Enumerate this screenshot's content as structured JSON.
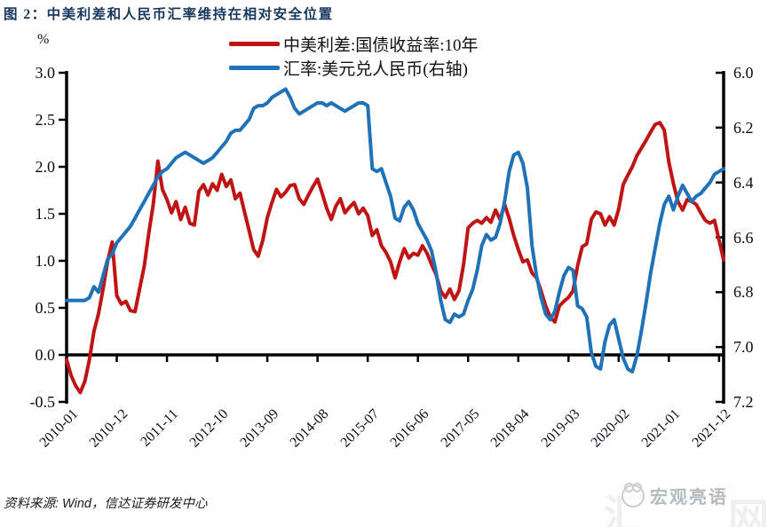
{
  "title": "图 2：中美利差和人民币汇率维持在相对安全位置",
  "axes": {
    "left_unit": "%",
    "left_tick_labels": [
      "3.0",
      "2.5",
      "2.0",
      "1.5",
      "1.0",
      "0.5",
      "0.0",
      "-0.5"
    ],
    "right_tick_labels": [
      "6.0",
      "6.2",
      "6.4",
      "6.6",
      "6.8",
      "7.0",
      "7.2"
    ],
    "x_tick_labels": [
      "2010-01",
      "2010-12",
      "2011-11",
      "2012-10",
      "2013-09",
      "2014-08",
      "2015-07",
      "2016-06",
      "2017-05",
      "2018-04",
      "2019-03",
      "2020-02",
      "2021-01",
      "2021-12"
    ]
  },
  "source": {
    "text": "资料来源: Wind，信达证券研发中心"
  },
  "watermark": {
    "text": "宏观亮语",
    "faint_glyphs": [
      "汇",
      "网"
    ]
  },
  "colors": {
    "title": "#17375e",
    "spread_line": "#c01414",
    "fx_line": "#1f72b8",
    "axis": "#000000"
  },
  "chart_data": {
    "type": "line",
    "title": "图 2：中美利差和人民币汇率维持在相对安全位置",
    "frequency": "monthly",
    "x_start": "2010-01",
    "x_end": "2022-01",
    "x_tick_labels": [
      "2010-01",
      "2010-12",
      "2011-11",
      "2012-10",
      "2013-09",
      "2014-08",
      "2015-07",
      "2016-06",
      "2017-05",
      "2018-04",
      "2019-03",
      "2020-02",
      "2021-01",
      "2021-12"
    ],
    "x_tick_interval_months": 11,
    "grid": false,
    "legend_position": "top-center",
    "left_axis": {
      "label": "%",
      "min": -0.5,
      "max": 3.0,
      "ticks": [
        3.0,
        2.5,
        2.0,
        1.5,
        1.0,
        0.5,
        0.0,
        -0.5
      ]
    },
    "right_axis": {
      "min": 6.0,
      "max": 7.2,
      "reversed_display": "6.0 at top, 7.2 at bottom",
      "ticks": [
        6.0,
        6.2,
        6.4,
        6.6,
        6.8,
        7.0,
        7.2
      ]
    },
    "series": [
      {
        "id": "spread-line",
        "name": "中美利差:国债收益率:10年",
        "axis": "left",
        "unit": "%",
        "color": "#c01414",
        "values": [
          -0.05,
          -0.22,
          -0.33,
          -0.4,
          -0.28,
          -0.05,
          0.25,
          0.44,
          0.7,
          1.0,
          1.2,
          0.63,
          0.54,
          0.57,
          0.47,
          0.46,
          0.7,
          0.94,
          1.29,
          1.6,
          2.06,
          1.76,
          1.65,
          1.51,
          1.63,
          1.44,
          1.57,
          1.4,
          1.38,
          1.74,
          1.81,
          1.7,
          1.82,
          1.75,
          1.92,
          1.79,
          1.86,
          1.66,
          1.72,
          1.52,
          1.32,
          1.12,
          1.05,
          1.22,
          1.46,
          1.62,
          1.76,
          1.68,
          1.73,
          1.8,
          1.81,
          1.66,
          1.6,
          1.7,
          1.79,
          1.87,
          1.72,
          1.56,
          1.44,
          1.58,
          1.66,
          1.51,
          1.57,
          1.62,
          1.5,
          1.56,
          1.48,
          1.27,
          1.33,
          1.16,
          1.09,
          0.99,
          0.82,
          0.99,
          1.13,
          1.03,
          1.08,
          1.06,
          1.16,
          1.08,
          0.96,
          0.85,
          0.68,
          0.61,
          0.7,
          0.59,
          0.68,
          0.96,
          1.35,
          1.4,
          1.43,
          1.4,
          1.46,
          1.41,
          1.54,
          1.44,
          1.6,
          1.45,
          1.27,
          1.12,
          0.99,
          1.01,
          0.87,
          0.82,
          0.68,
          0.52,
          0.4,
          0.35,
          0.52,
          0.57,
          0.61,
          0.68,
          0.95,
          1.15,
          1.18,
          1.44,
          1.52,
          1.5,
          1.38,
          1.47,
          1.38,
          1.55,
          1.81,
          1.91,
          2.0,
          2.12,
          2.2,
          2.28,
          2.37,
          2.45,
          2.47,
          2.39,
          2.05,
          1.82,
          1.63,
          1.54,
          1.65,
          1.63,
          1.6,
          1.51,
          1.43,
          1.4,
          1.43,
          1.22,
          1.01
        ]
      },
      {
        "id": "fx-line",
        "name": "汇率:美元兑人民币(右轴)",
        "axis": "right",
        "unit": "CNY per USD",
        "color": "#1f72b8",
        "values": [
          6.83,
          6.83,
          6.83,
          6.83,
          6.83,
          6.82,
          6.78,
          6.8,
          6.74,
          6.68,
          6.66,
          6.62,
          6.6,
          6.58,
          6.56,
          6.53,
          6.5,
          6.47,
          6.44,
          6.41,
          6.38,
          6.36,
          6.35,
          6.33,
          6.31,
          6.3,
          6.29,
          6.3,
          6.31,
          6.32,
          6.33,
          6.32,
          6.31,
          6.29,
          6.27,
          6.25,
          6.22,
          6.21,
          6.21,
          6.19,
          6.17,
          6.13,
          6.12,
          6.12,
          6.11,
          6.09,
          6.08,
          6.07,
          6.06,
          6.09,
          6.13,
          6.15,
          6.14,
          6.13,
          6.12,
          6.11,
          6.11,
          6.12,
          6.11,
          6.12,
          6.13,
          6.14,
          6.13,
          6.12,
          6.11,
          6.11,
          6.12,
          6.35,
          6.36,
          6.35,
          6.4,
          6.45,
          6.53,
          6.54,
          6.49,
          6.47,
          6.5,
          6.55,
          6.58,
          6.61,
          6.65,
          6.73,
          6.83,
          6.9,
          6.91,
          6.88,
          6.89,
          6.88,
          6.83,
          6.79,
          6.72,
          6.63,
          6.59,
          6.61,
          6.6,
          6.55,
          6.47,
          6.36,
          6.3,
          6.29,
          6.33,
          6.42,
          6.63,
          6.74,
          6.82,
          6.88,
          6.9,
          6.87,
          6.8,
          6.74,
          6.71,
          6.72,
          6.85,
          6.86,
          6.89,
          7.02,
          7.07,
          7.08,
          6.98,
          6.92,
          6.9,
          6.97,
          7.04,
          7.08,
          7.09,
          7.03,
          6.94,
          6.84,
          6.73,
          6.64,
          6.55,
          6.48,
          6.45,
          6.5,
          6.45,
          6.41,
          6.44,
          6.47,
          6.45,
          6.44,
          6.42,
          6.4,
          6.37,
          6.36,
          6.35
        ]
      }
    ]
  },
  "legend": [
    {
      "label": "中美利差:国债收益率:10年"
    },
    {
      "label": "汇率:美元兑人民币(右轴)"
    }
  ]
}
